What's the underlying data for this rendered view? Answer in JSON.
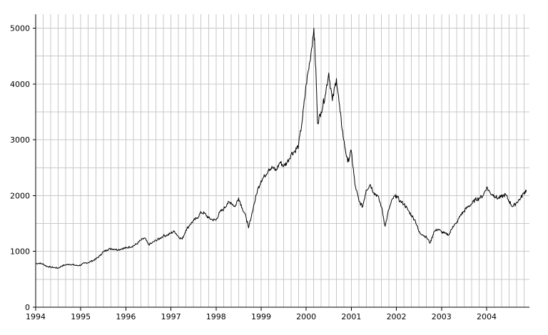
{
  "chart_data": {
    "type": "line",
    "title": "",
    "xlabel": "",
    "ylabel": "",
    "xlim": [
      1994.0,
      2004.95
    ],
    "ylim": [
      0,
      5250
    ],
    "grid": true,
    "legend": "none",
    "x_ticks": [
      "1994",
      "1995",
      "1996",
      "1997",
      "1998",
      "1999",
      "2000",
      "2001",
      "2002",
      "2003",
      "2004"
    ],
    "y_ticks": [
      "0",
      "1000",
      "2000",
      "3000",
      "4000",
      "5000"
    ],
    "colors": {
      "line": "#000000",
      "grid": "#c8c8c8",
      "axis": "#000000"
    },
    "series": [
      {
        "points": [
          [
            1994.0,
            780
          ],
          [
            1994.08,
            790
          ],
          [
            1994.17,
            770
          ],
          [
            1994.25,
            730
          ],
          [
            1994.33,
            720
          ],
          [
            1994.42,
            710
          ],
          [
            1994.5,
            700
          ],
          [
            1994.58,
            740
          ],
          [
            1994.67,
            760
          ],
          [
            1994.75,
            770
          ],
          [
            1994.83,
            760
          ],
          [
            1994.92,
            745
          ],
          [
            1995.0,
            755
          ],
          [
            1995.08,
            790
          ],
          [
            1995.17,
            800
          ],
          [
            1995.25,
            830
          ],
          [
            1995.33,
            860
          ],
          [
            1995.42,
            920
          ],
          [
            1995.5,
            990
          ],
          [
            1995.58,
            1030
          ],
          [
            1995.67,
            1050
          ],
          [
            1995.75,
            1040
          ],
          [
            1995.83,
            1030
          ],
          [
            1995.92,
            1050
          ],
          [
            1996.0,
            1060
          ],
          [
            1996.08,
            1080
          ],
          [
            1996.17,
            1100
          ],
          [
            1996.25,
            1140
          ],
          [
            1996.33,
            1200
          ],
          [
            1996.42,
            1240
          ],
          [
            1996.5,
            1120
          ],
          [
            1996.58,
            1150
          ],
          [
            1996.67,
            1200
          ],
          [
            1996.75,
            1230
          ],
          [
            1996.83,
            1280
          ],
          [
            1996.92,
            1290
          ],
          [
            1997.0,
            1330
          ],
          [
            1997.08,
            1360
          ],
          [
            1997.17,
            1260
          ],
          [
            1997.25,
            1220
          ],
          [
            1997.33,
            1380
          ],
          [
            1997.42,
            1480
          ],
          [
            1997.5,
            1550
          ],
          [
            1997.58,
            1600
          ],
          [
            1997.67,
            1700
          ],
          [
            1997.75,
            1680
          ],
          [
            1997.83,
            1600
          ],
          [
            1997.92,
            1570
          ],
          [
            1998.0,
            1560
          ],
          [
            1998.08,
            1700
          ],
          [
            1998.17,
            1760
          ],
          [
            1998.25,
            1860
          ],
          [
            1998.33,
            1880
          ],
          [
            1998.42,
            1800
          ],
          [
            1998.5,
            1960
          ],
          [
            1998.58,
            1780
          ],
          [
            1998.67,
            1600
          ],
          [
            1998.72,
            1420
          ],
          [
            1998.83,
            1800
          ],
          [
            1998.92,
            2100
          ],
          [
            1999.0,
            2270
          ],
          [
            1999.08,
            2350
          ],
          [
            1999.17,
            2480
          ],
          [
            1999.25,
            2500
          ],
          [
            1999.33,
            2450
          ],
          [
            1999.42,
            2600
          ],
          [
            1999.5,
            2530
          ],
          [
            1999.58,
            2600
          ],
          [
            1999.67,
            2750
          ],
          [
            1999.75,
            2800
          ],
          [
            1999.83,
            2900
          ],
          [
            1999.92,
            3400
          ],
          [
            2000.0,
            4000
          ],
          [
            2000.08,
            4400
          ],
          [
            2000.17,
            5000
          ],
          [
            2000.22,
            4100
          ],
          [
            2000.25,
            3300
          ],
          [
            2000.33,
            3500
          ],
          [
            2000.42,
            3800
          ],
          [
            2000.5,
            4200
          ],
          [
            2000.58,
            3700
          ],
          [
            2000.67,
            4100
          ],
          [
            2000.75,
            3500
          ],
          [
            2000.83,
            3000
          ],
          [
            2000.92,
            2600
          ],
          [
            2001.0,
            2800
          ],
          [
            2001.08,
            2200
          ],
          [
            2001.17,
            1900
          ],
          [
            2001.25,
            1800
          ],
          [
            2001.33,
            2100
          ],
          [
            2001.42,
            2200
          ],
          [
            2001.5,
            2050
          ],
          [
            2001.58,
            2000
          ],
          [
            2001.67,
            1800
          ],
          [
            2001.75,
            1450
          ],
          [
            2001.83,
            1750
          ],
          [
            2001.92,
            1950
          ],
          [
            2002.0,
            2000
          ],
          [
            2002.08,
            1900
          ],
          [
            2002.17,
            1850
          ],
          [
            2002.25,
            1750
          ],
          [
            2002.33,
            1650
          ],
          [
            2002.42,
            1550
          ],
          [
            2002.5,
            1350
          ],
          [
            2002.58,
            1300
          ],
          [
            2002.67,
            1250
          ],
          [
            2002.75,
            1150
          ],
          [
            2002.83,
            1350
          ],
          [
            2002.92,
            1400
          ],
          [
            2003.0,
            1350
          ],
          [
            2003.08,
            1320
          ],
          [
            2003.17,
            1300
          ],
          [
            2003.25,
            1450
          ],
          [
            2003.33,
            1500
          ],
          [
            2003.42,
            1650
          ],
          [
            2003.5,
            1720
          ],
          [
            2003.58,
            1800
          ],
          [
            2003.67,
            1850
          ],
          [
            2003.75,
            1930
          ],
          [
            2003.83,
            1950
          ],
          [
            2003.92,
            2000
          ],
          [
            2004.0,
            2150
          ],
          [
            2004.08,
            2050
          ],
          [
            2004.17,
            2000
          ],
          [
            2004.25,
            1950
          ],
          [
            2004.33,
            1980
          ],
          [
            2004.42,
            2020
          ],
          [
            2004.5,
            1900
          ],
          [
            2004.58,
            1800
          ],
          [
            2004.67,
            1880
          ],
          [
            2004.75,
            1950
          ],
          [
            2004.83,
            2050
          ],
          [
            2004.88,
            2100
          ]
        ]
      }
    ]
  }
}
